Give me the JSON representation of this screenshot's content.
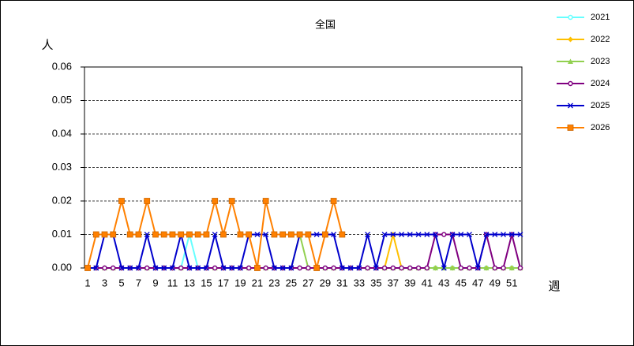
{
  "chart_data": {
    "type": "line",
    "title": "全国",
    "y_label": "人",
    "x_label": "週",
    "categories": [
      1,
      null,
      3,
      null,
      5,
      null,
      7,
      null,
      9,
      null,
      11,
      null,
      13,
      null,
      15,
      null,
      17,
      null,
      19,
      null,
      21,
      null,
      23,
      null,
      25,
      null,
      27,
      null,
      29,
      null,
      31,
      null,
      33,
      null,
      35,
      null,
      37,
      null,
      39,
      null,
      41,
      null,
      43,
      null,
      45,
      null,
      47,
      null,
      49,
      null,
      51,
      null
    ],
    "ylim": [
      0,
      0.06
    ],
    "yticks": [
      {
        "value": 0,
        "label": "0.00"
      },
      {
        "value": 0.01,
        "label": "0.01"
      },
      {
        "value": 0.02,
        "label": "0.02"
      },
      {
        "value": 0.03,
        "label": "0.03"
      },
      {
        "value": 0.04,
        "label": "0.04"
      },
      {
        "value": 0.05,
        "label": "0.05"
      },
      {
        "value": 0.06,
        "label": "0.06"
      }
    ],
    "grid": true,
    "series": [
      {
        "name": "2021",
        "color": "#66ffff",
        "marker": "circle",
        "values": [
          0,
          0,
          0,
          0,
          0,
          0,
          0,
          0,
          0,
          0,
          0,
          0,
          0.01,
          0,
          0,
          0,
          0,
          0,
          0,
          0,
          0,
          0,
          0,
          0,
          0,
          0,
          0,
          0,
          0,
          0,
          0,
          0,
          0,
          0,
          0,
          0,
          0,
          0,
          0,
          0,
          0,
          0,
          0,
          0,
          0,
          0,
          0,
          0,
          0,
          0,
          0,
          0
        ]
      },
      {
        "name": "2022",
        "color": "#ffc000",
        "marker": "diamond",
        "values": [
          0,
          0,
          0,
          0,
          0,
          0,
          0,
          0,
          0,
          0,
          0,
          0,
          0,
          0,
          0,
          0,
          0,
          0,
          0,
          0,
          0,
          0,
          0,
          0,
          0,
          0,
          0,
          0,
          0,
          0,
          0,
          0,
          0,
          0,
          0,
          0,
          0.01,
          0,
          0,
          0,
          0,
          0,
          0,
          0,
          0,
          0,
          0,
          0,
          0,
          0,
          0,
          0
        ]
      },
      {
        "name": "2023",
        "color": "#92d050",
        "marker": "triangle",
        "values": [
          0,
          0,
          0,
          0,
          0,
          0,
          0,
          0,
          0,
          0,
          0,
          0,
          0,
          0,
          0,
          0,
          0,
          0,
          0,
          0,
          0,
          0,
          0,
          0,
          0,
          0.01,
          0,
          0,
          0,
          0,
          0,
          0,
          0,
          0,
          0,
          0,
          0,
          0,
          0,
          0,
          0,
          0,
          0,
          0,
          0,
          0,
          0,
          0,
          0,
          0,
          0,
          0
        ]
      },
      {
        "name": "2024",
        "color": "#800080",
        "marker": "circle",
        "values": [
          0,
          0,
          0,
          0,
          0,
          0,
          0,
          0,
          0,
          0,
          0,
          0,
          0,
          0,
          0,
          0,
          0,
          0,
          0,
          0,
          0,
          0,
          0,
          0,
          0,
          0,
          0,
          0,
          0,
          0,
          0,
          0,
          0,
          0,
          0,
          0,
          0,
          0,
          0,
          0,
          0,
          0.01,
          0.01,
          0.01,
          0,
          0,
          0,
          0.01,
          0,
          0,
          0.01,
          0
        ]
      },
      {
        "name": "2025",
        "color": "#0000cc",
        "marker": "x",
        "values": [
          0,
          0,
          0.01,
          0.01,
          0,
          0,
          0,
          0.01,
          0,
          0,
          0,
          0.01,
          0,
          0,
          0,
          0.01,
          0,
          0,
          0,
          0.01,
          0.01,
          0.01,
          0,
          0,
          0,
          0.01,
          0.01,
          0.01,
          0.01,
          0.01,
          0,
          0,
          0,
          0.01,
          0,
          0.01,
          0.01,
          0.01,
          0.01,
          0.01,
          0.01,
          0.01,
          0,
          0.01,
          0.01,
          0.01,
          0,
          0.01,
          0.01,
          0.01,
          0.01,
          0.01
        ]
      },
      {
        "name": "2026",
        "color": "#ff8000",
        "marker": "square",
        "values": [
          0,
          0.01,
          0.01,
          0.01,
          0.02,
          0.01,
          0.01,
          0.02,
          0.01,
          0.01,
          0.01,
          0.01,
          0.01,
          0.01,
          0.01,
          0.02,
          0.01,
          0.02,
          0.01,
          0.01,
          0,
          0.02,
          0.01,
          0.01,
          0.01,
          0.01,
          0.01,
          0,
          0.01,
          0.02,
          0.01,
          null,
          null,
          null,
          null,
          null,
          null,
          null,
          null,
          null,
          null,
          null,
          null,
          null,
          null,
          null,
          null,
          null,
          null,
          null,
          null,
          null
        ]
      }
    ]
  }
}
